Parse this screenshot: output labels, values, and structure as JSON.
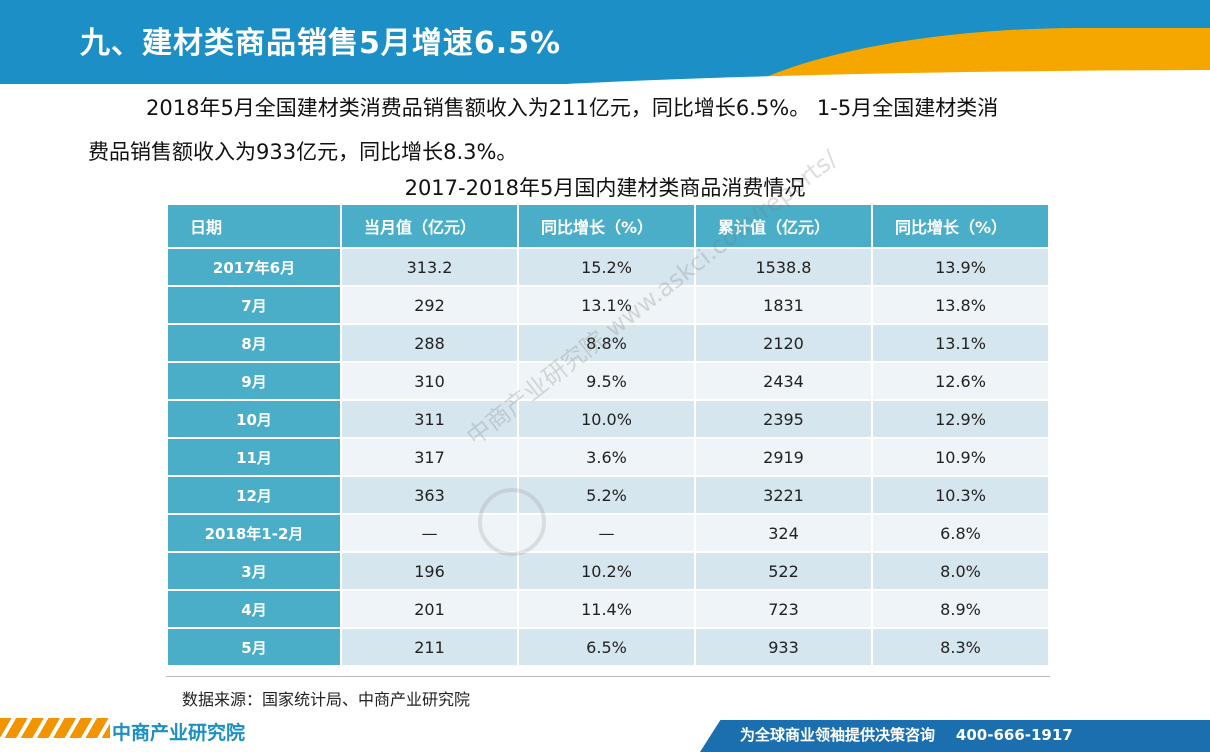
{
  "header": {
    "title": "九、建材类商品销售5月增速6.5%"
  },
  "paragraph": {
    "line1": "2018年5月全国建材类消费品销售额收入为211亿元，同比增长6.5%。 1-5月全国建材类消",
    "line2": "费品销售额收入为933亿元，同比增长8.3%。"
  },
  "table": {
    "title": "2017-2018年5月国内建材类商品消费情况",
    "headers": [
      "日期",
      "当月值（亿元）",
      "同比增长（%）",
      "累计值（亿元）",
      "同比增长（%）"
    ],
    "rows": [
      [
        "2017年6月",
        "313.2",
        "15.2%",
        "1538.8",
        "13.9%"
      ],
      [
        "7月",
        "292",
        "13.1%",
        "1831",
        "13.8%"
      ],
      [
        "8月",
        "288",
        "8.8%",
        "2120",
        "13.1%"
      ],
      [
        "9月",
        "310",
        "9.5%",
        "2434",
        "12.6%"
      ],
      [
        "10月",
        "311",
        "10.0%",
        "2395",
        "12.9%"
      ],
      [
        "11月",
        "317",
        "3.6%",
        "2919",
        "10.9%"
      ],
      [
        "12月",
        "363",
        "5.2%",
        "3221",
        "10.3%"
      ],
      [
        "2018年1-2月",
        "—",
        "—",
        "324",
        "6.8%"
      ],
      [
        "3月",
        "196",
        "10.2%",
        "522",
        "8.0%"
      ],
      [
        "4月",
        "201",
        "11.4%",
        "723",
        "8.9%"
      ],
      [
        "5月",
        "211",
        "6.5%",
        "933",
        "8.3%"
      ]
    ]
  },
  "source": "数据来源：国家统计局、中商产业研究院",
  "watermark": "中商产业研究院 www.askci.com/reports/",
  "footer": {
    "logo": "中商产业研究院",
    "slogan": "为全球商业领袖提供决策咨询",
    "phone": "400-666-1917"
  },
  "colors": {
    "header_blue": "#1b8fc6",
    "accent_orange": "#f5a700",
    "table_header": "#4aaec8"
  }
}
